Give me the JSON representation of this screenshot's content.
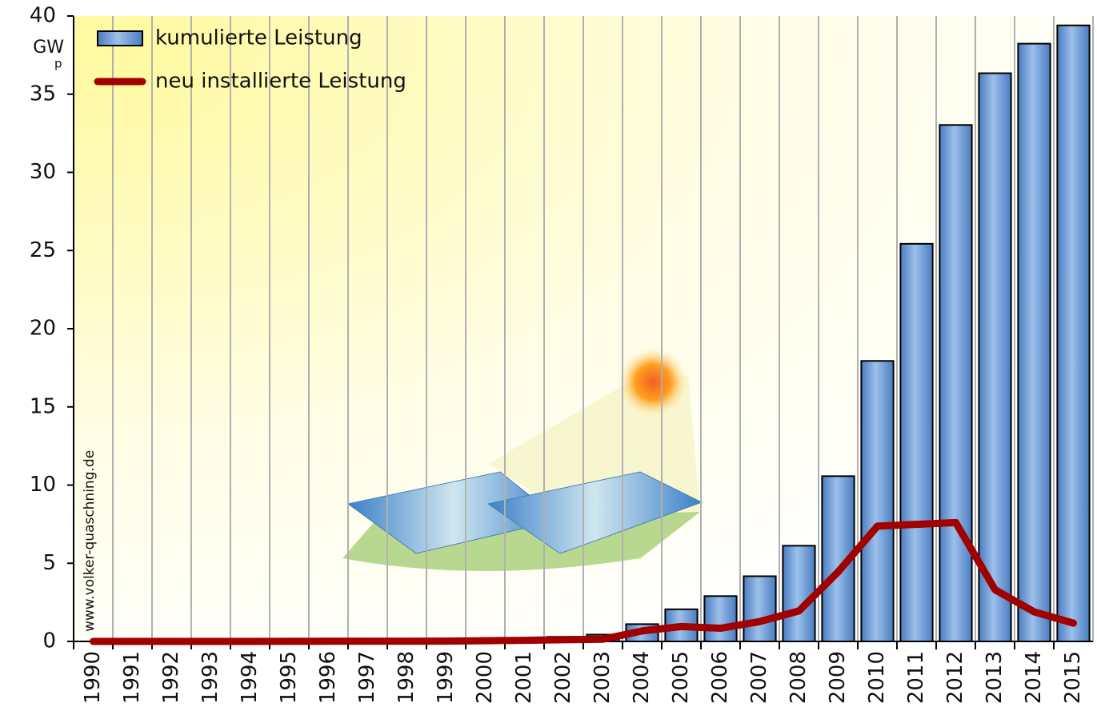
{
  "chart_data": {
    "type": "bar",
    "y_label": "GW",
    "y_label_sub": "p",
    "watermark": "www.volker-quaschning.de",
    "categories": [
      "1990",
      "1991",
      "1992",
      "1993",
      "1994",
      "1995",
      "1996",
      "1997",
      "1998",
      "1999",
      "2000",
      "2001",
      "2002",
      "2003",
      "2004",
      "2005",
      "2006",
      "2007",
      "2008",
      "2009",
      "2010",
      "2011",
      "2012",
      "2013",
      "2014",
      "2015"
    ],
    "series": [
      {
        "name": "kumulierte Leistung",
        "type": "bar",
        "color": "#5b8fd0",
        "values": [
          0.002,
          0.003,
          0.006,
          0.009,
          0.012,
          0.018,
          0.028,
          0.042,
          0.054,
          0.07,
          0.114,
          0.186,
          0.296,
          0.435,
          1.105,
          2.056,
          2.899,
          4.17,
          6.12,
          10.57,
          17.94,
          25.43,
          33.03,
          36.34,
          38.23,
          39.4
        ]
      },
      {
        "name": "neu installierte Leistung",
        "type": "line",
        "color": "#a00000",
        "values": [
          0.0,
          0.001,
          0.003,
          0.003,
          0.003,
          0.006,
          0.01,
          0.014,
          0.012,
          0.016,
          0.044,
          0.072,
          0.11,
          0.139,
          0.67,
          0.951,
          0.843,
          1.271,
          1.95,
          4.45,
          7.37,
          7.49,
          7.6,
          3.31,
          1.89,
          1.17
        ]
      }
    ],
    "ylim": [
      0,
      40
    ],
    "yticks": [
      0,
      5,
      10,
      15,
      20,
      25,
      30,
      35,
      40
    ],
    "grid": true
  }
}
